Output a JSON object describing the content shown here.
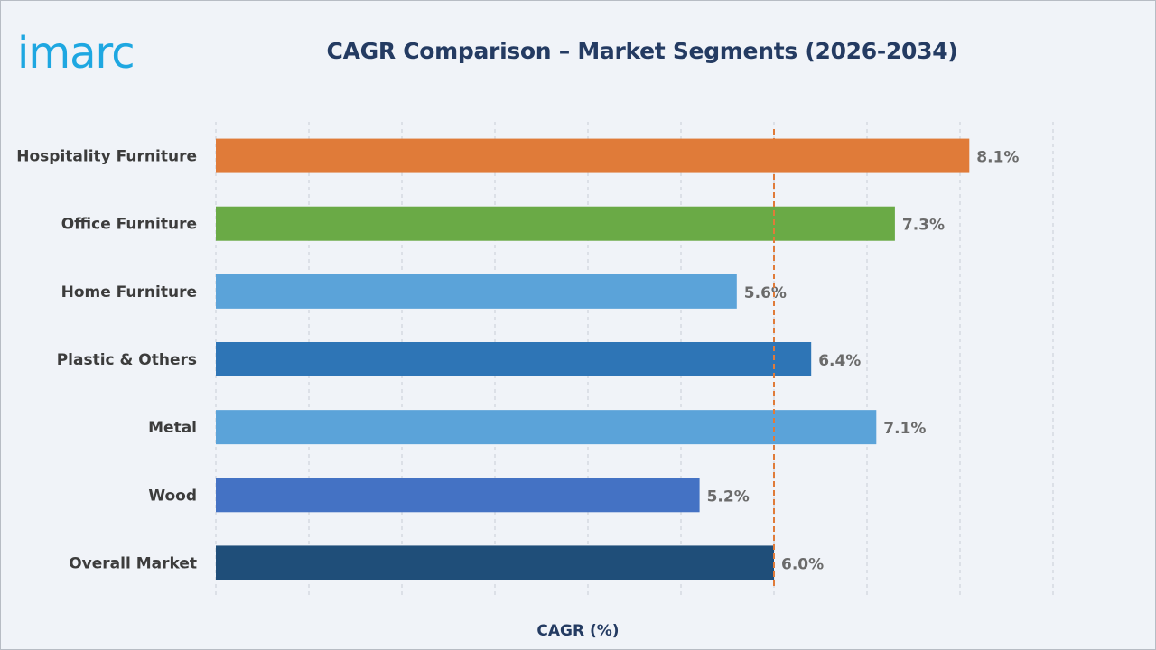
{
  "brand": {
    "logo_text": "imarc",
    "logo_color": "#1ea7e1"
  },
  "chart_data": {
    "type": "bar",
    "orientation": "horizontal",
    "title": "CAGR Comparison – Market Segments (2026-2034)",
    "xlabel": "CAGR (%)",
    "ylabel": "",
    "xlim": [
      0,
      9
    ],
    "grid": true,
    "legend": "none",
    "categories": [
      "Hospitality Furniture",
      "Office Furniture",
      "Home Furniture",
      "Plastic & Others",
      "Metal",
      "Wood",
      "Overall Market"
    ],
    "values": [
      8.1,
      7.3,
      5.6,
      6.4,
      7.1,
      5.2,
      6.0
    ],
    "value_labels": [
      "8.1%",
      "7.3%",
      "5.6%",
      "6.4%",
      "7.1%",
      "5.2%",
      "6.0%"
    ],
    "bar_colors": [
      "#e07b39",
      "#6aaa46",
      "#5ba3d9",
      "#2e75b6",
      "#5ba3d9",
      "#4472c4",
      "#1f4e79"
    ],
    "reference_line": {
      "value": 6.0,
      "style": "dashed",
      "color": "#e07b39"
    }
  }
}
